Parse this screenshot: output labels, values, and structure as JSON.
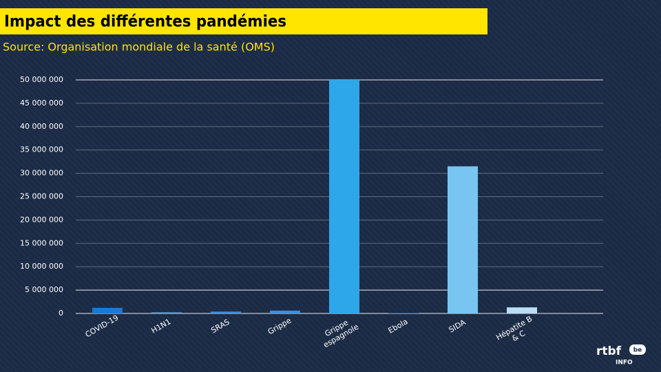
{
  "chart_data": {
    "type": "bar",
    "title": "Impact des différentes pandémies",
    "subtitle": "Source:  Organisation mondiale de la santé (OMS)",
    "categories": [
      "COVID-19",
      "H1N1",
      "SRAS",
      "Grippe",
      "Grippe espagnole",
      "Ebola",
      "SIDA",
      "Hépatite B & C"
    ],
    "values": [
      1200000,
      250000,
      400000,
      600000,
      50000000,
      100000,
      31500000,
      1300000
    ],
    "colors": [
      "#1a78d6",
      "#5a9ad8",
      "#3c8fe2",
      "#3c8fe2",
      "#2ea7ea",
      "#2a6fb8",
      "#78c5f1",
      "#b9def6"
    ],
    "ylim": [
      0,
      50000000
    ],
    "yticks": [
      0,
      {
        "value": 5000000,
        "label": "5 000 000"
      },
      {
        "value": 10000000,
        "label": "10 000 000"
      },
      {
        "value": 15000000,
        "label": "15 000 000"
      },
      {
        "value": 20000000,
        "label": "20 000 000"
      },
      {
        "value": 25000000,
        "label": "25 000 000"
      },
      {
        "value": 30000000,
        "label": "30 000 000"
      },
      {
        "value": 35000000,
        "label": "35 000 000"
      },
      {
        "value": 40000000,
        "label": "40 000 000"
      },
      {
        "value": 45000000,
        "label": "45 000 000"
      },
      {
        "value": 50000000,
        "label": "50 000 000"
      }
    ],
    "grid": true
  },
  "branding": {
    "logo": "rtbf",
    "badge": "be",
    "sub": "INFO"
  }
}
